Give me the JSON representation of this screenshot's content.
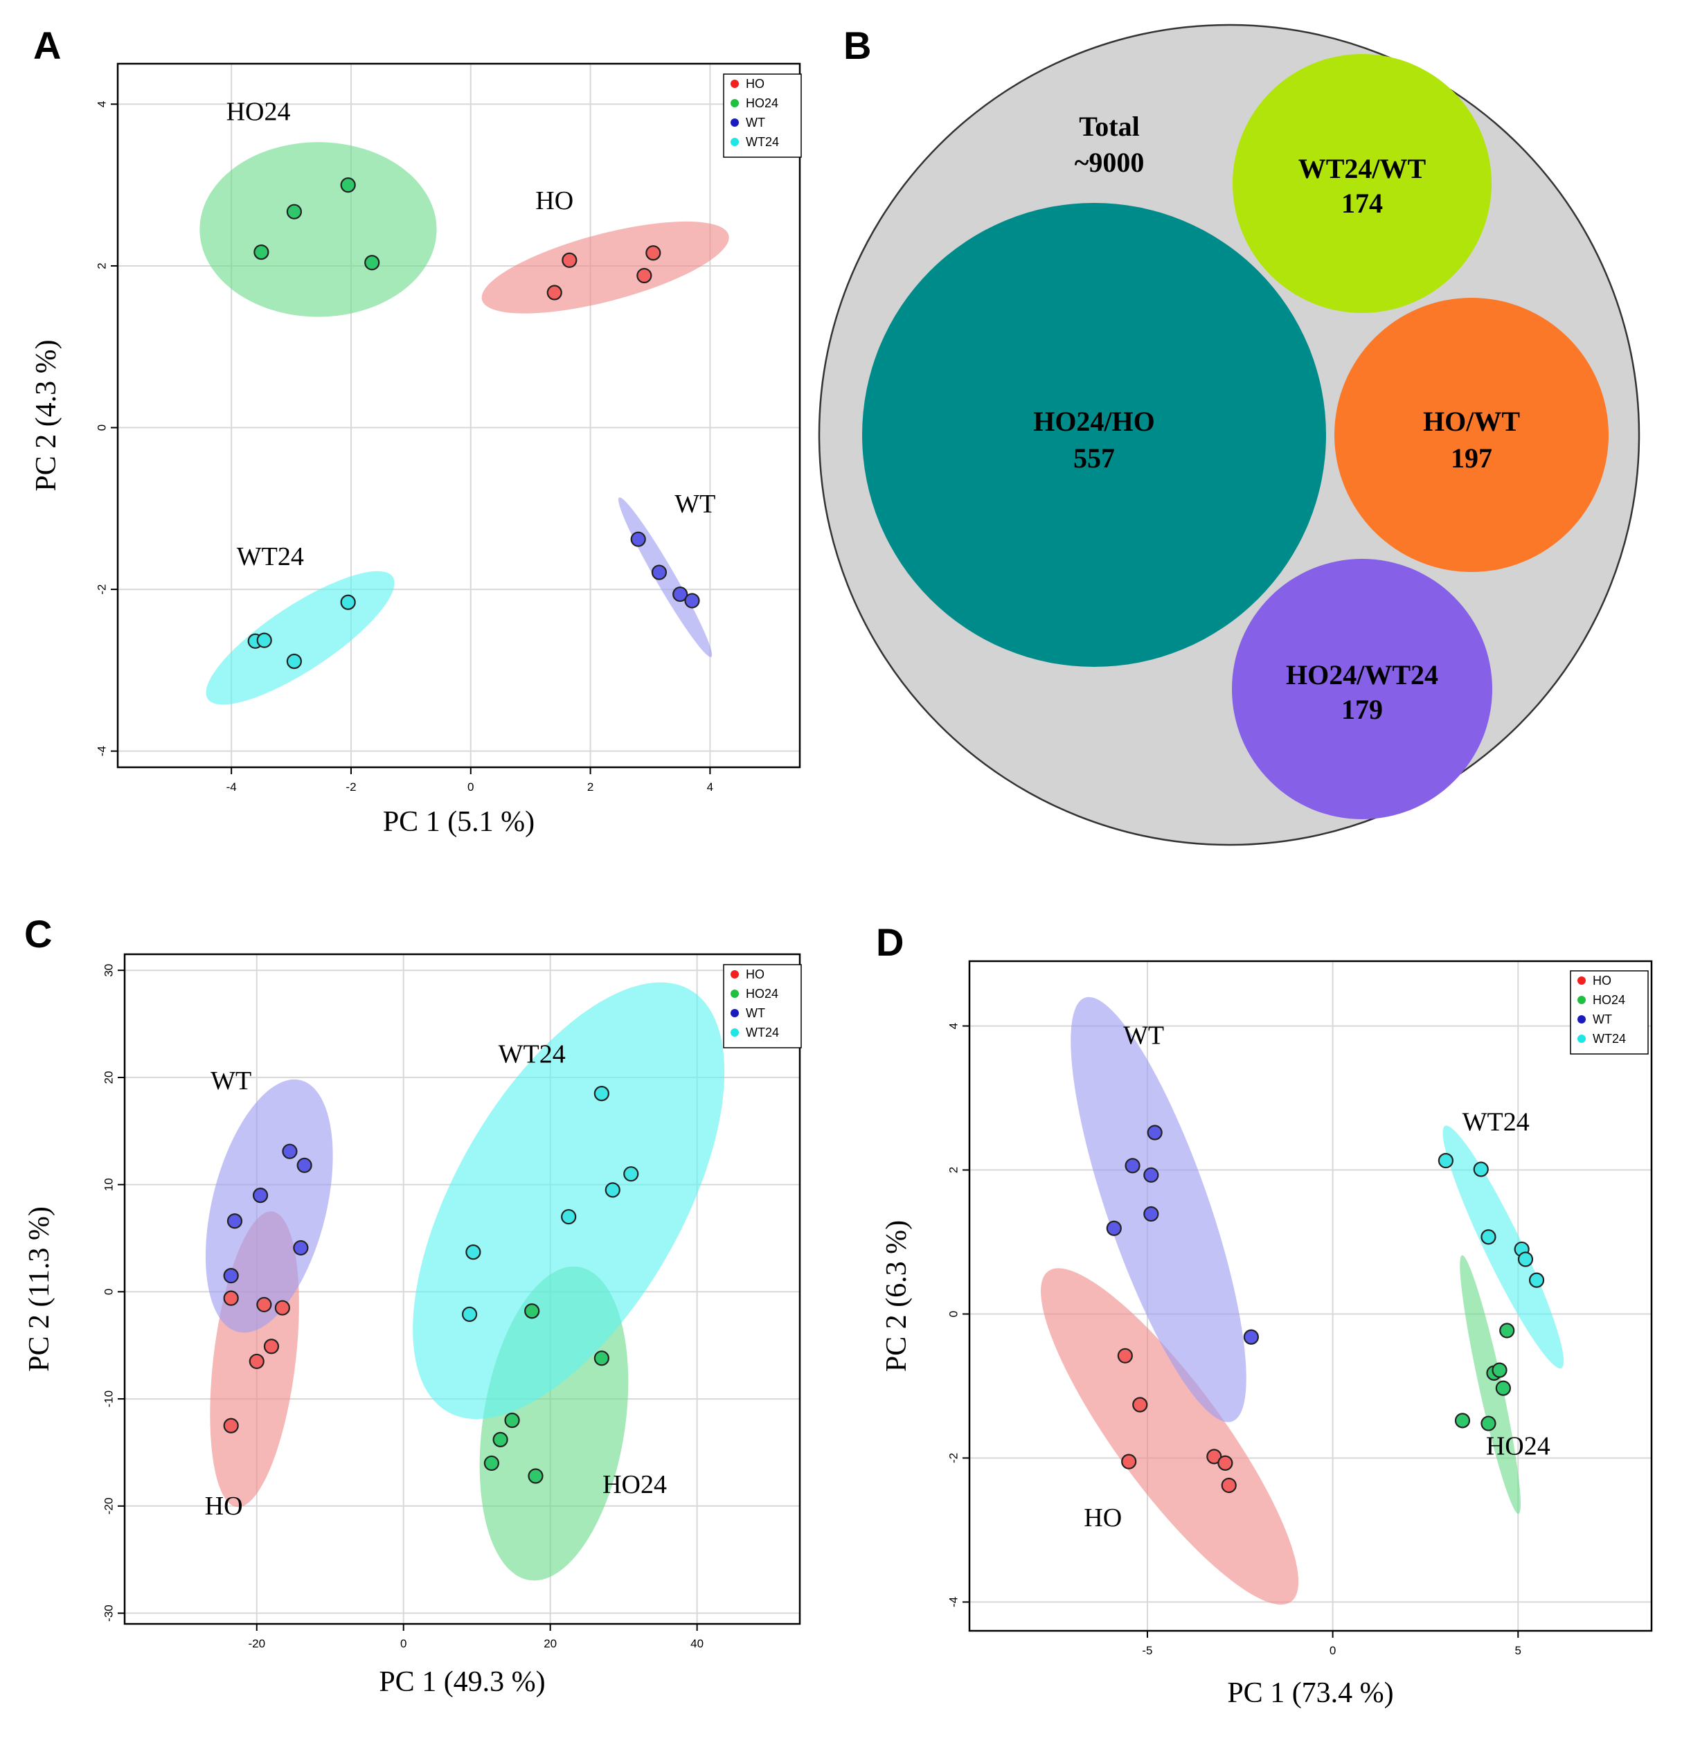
{
  "figure": {
    "panel_letters": [
      "A",
      "B",
      "C",
      "D"
    ]
  },
  "legend_groups": [
    {
      "name": "HO",
      "color": "#f2201f"
    },
    {
      "name": "HO24",
      "color": "#1fbf3f"
    },
    {
      "name": "WT",
      "color": "#1a1abf"
    },
    {
      "name": "WT24",
      "color": "#1fe5e5"
    }
  ],
  "ellipse_colors": {
    "HO": "#f08a8a",
    "HO24": "#6cdc8a",
    "WT": "#9c9cf0",
    "WT24": "#60f2f2"
  },
  "point_colors": {
    "HO": "#f26060",
    "HO24": "#2ec86a",
    "WT": "#5a5ae6",
    "WT24": "#40e6e6"
  },
  "chart_data": [
    {
      "panel": "A",
      "type": "scatter",
      "title": "",
      "xlabel": "PC 1 (5.1 %)",
      "ylabel": "PC 2 (4.3 %)",
      "xlim": [
        -5.9,
        5.5
      ],
      "ylim": [
        -4.2,
        4.5
      ],
      "xticks": [
        -4,
        -2,
        0,
        2,
        4
      ],
      "yticks": [
        -4,
        -2,
        0,
        2,
        4
      ],
      "legend": "top-right",
      "series": [
        {
          "name": "HO",
          "label": "HO",
          "label_at": [
            1.4,
            2.7
          ],
          "points": [
            [
              1.4,
              1.67
            ],
            [
              1.65,
              2.07
            ],
            [
              2.9,
              1.88
            ],
            [
              3.05,
              2.16
            ]
          ],
          "ellipse": {
            "cx": 2.25,
            "cy": 1.98,
            "rx": 2.1,
            "ry": 0.42,
            "angle": 11
          }
        },
        {
          "name": "HO24",
          "label": "HO24",
          "label_at": [
            -3.55,
            3.8
          ],
          "points": [
            [
              -3.5,
              2.17
            ],
            [
              -2.95,
              2.67
            ],
            [
              -2.05,
              3.0
            ],
            [
              -1.65,
              2.04
            ]
          ],
          "ellipse": {
            "cx": -2.55,
            "cy": 2.45,
            "rx": 1.98,
            "ry": 1.08,
            "angle": 0
          }
        },
        {
          "name": "WT",
          "label": "WT",
          "label_at": [
            3.75,
            -1.05
          ],
          "points": [
            [
              2.8,
              -1.38
            ],
            [
              3.15,
              -1.79
            ],
            [
              3.5,
              -2.06
            ],
            [
              3.7,
              -2.14
            ]
          ],
          "ellipse": {
            "cx": 3.25,
            "cy": -1.85,
            "rx": 1.25,
            "ry": 0.14,
            "angle": -52
          }
        },
        {
          "name": "WT24",
          "label": "WT24",
          "label_at": [
            -3.35,
            -1.7
          ],
          "points": [
            [
              -3.6,
              -2.64
            ],
            [
              -3.45,
              -2.63
            ],
            [
              -2.95,
              -2.89
            ],
            [
              -2.05,
              -2.16
            ]
          ],
          "ellipse": {
            "cx": -2.85,
            "cy": -2.6,
            "rx": 1.72,
            "ry": 0.42,
            "angle": 26
          }
        }
      ]
    },
    {
      "panel": "B",
      "type": "bubble",
      "total_label": "Total",
      "total_value": "~9000",
      "bubbles": [
        {
          "label": "HO24/HO",
          "value": "557",
          "color": "#008b8b"
        },
        {
          "label": "WT24/WT",
          "value": "174",
          "color": "#b0e40a"
        },
        {
          "label": "HO/WT",
          "value": "197",
          "color": "#fb7828"
        },
        {
          "label": "HO24/WT24",
          "value": "179",
          "color": "#8660e6"
        }
      ],
      "background_color": "#d3d3d3"
    },
    {
      "panel": "C",
      "type": "scatter",
      "title": "",
      "xlabel": "PC 1 (49.3 %)",
      "ylabel": "PC 2 (11.3 %)",
      "xlim": [
        -38,
        54
      ],
      "ylim": [
        -31,
        31.5
      ],
      "xticks": [
        -20,
        0,
        20,
        40
      ],
      "yticks": [
        -30,
        -20,
        -10,
        0,
        10,
        20,
        30
      ],
      "legend": "top-right",
      "series": [
        {
          "name": "HO",
          "label": "HO",
          "label_at": [
            -24.5,
            -20.8
          ],
          "points": [
            [
              -23.5,
              -0.6
            ],
            [
              -19,
              -1.2
            ],
            [
              -16.5,
              -1.5
            ],
            [
              -18,
              -5.1
            ],
            [
              -20,
              -6.5
            ],
            [
              -23.5,
              -12.5
            ]
          ],
          "ellipse": {
            "cx": -20.3,
            "cy": -6.3,
            "rx": 14,
            "ry": 5.5,
            "angle": 80
          }
        },
        {
          "name": "HO24",
          "label": "HO24",
          "label_at": [
            31.5,
            -18.8
          ],
          "points": [
            [
              17.5,
              -1.8
            ],
            [
              27,
              -6.2
            ],
            [
              14.8,
              -12.0
            ],
            [
              13.2,
              -13.8
            ],
            [
              18,
              -17.2
            ],
            [
              12,
              -16.0
            ]
          ],
          "ellipse": {
            "cx": 20.5,
            "cy": -12.3,
            "rx": 15,
            "ry": 9.4,
            "angle": 77
          }
        },
        {
          "name": "WT",
          "label": "WT",
          "label_at": [
            -23.5,
            18.9
          ],
          "points": [
            [
              -15.5,
              13.1
            ],
            [
              -13.5,
              11.8
            ],
            [
              -19.5,
              9.0
            ],
            [
              -23.0,
              6.6
            ],
            [
              -14,
              4.1
            ],
            [
              -23.5,
              1.5
            ]
          ],
          "ellipse": {
            "cx": -18.3,
            "cy": 8.0,
            "rx": 12.5,
            "ry": 7.3,
            "angle": 70
          }
        },
        {
          "name": "WT24",
          "label": "WT24",
          "label_at": [
            17.5,
            21.4
          ],
          "points": [
            [
              27,
              18.5
            ],
            [
              31,
              11.0
            ],
            [
              28.5,
              9.5
            ],
            [
              22.5,
              7.0
            ],
            [
              9.5,
              3.7
            ],
            [
              9,
              -2.1
            ]
          ],
          "ellipse": {
            "cx": 22.5,
            "cy": 8.5,
            "rx": 25.7,
            "ry": 12.7,
            "angle": 50
          }
        }
      ]
    },
    {
      "panel": "D",
      "type": "scatter",
      "title": "",
      "xlabel": "PC 1 (73.4 %)",
      "ylabel": "PC 2 (6.3 %)",
      "xlim": [
        -9.8,
        8.6
      ],
      "ylim": [
        -4.4,
        4.9
      ],
      "xticks": [
        -5,
        0,
        5
      ],
      "yticks": [
        -4,
        -2,
        0,
        2,
        4
      ],
      "legend": "top-right",
      "series": [
        {
          "name": "HO",
          "label": "HO",
          "label_at": [
            -6.2,
            -2.95
          ],
          "points": [
            [
              -5.6,
              -0.58
            ],
            [
              -5.2,
              -1.26
            ],
            [
              -5.5,
              -2.05
            ],
            [
              -3.2,
              -1.98
            ],
            [
              -2.9,
              -2.07
            ],
            [
              -2.8,
              -2.38
            ]
          ],
          "ellipse": {
            "cx": -4.4,
            "cy": -1.7,
            "rx": 4.0,
            "ry": 0.85,
            "angle": -35
          }
        },
        {
          "name": "HO24",
          "label": "HO24",
          "label_at": [
            5.0,
            -1.95
          ],
          "points": [
            [
              4.7,
              -0.23
            ],
            [
              4.35,
              -0.82
            ],
            [
              4.5,
              -0.78
            ],
            [
              4.6,
              -1.03
            ],
            [
              3.5,
              -1.48
            ],
            [
              4.2,
              -1.52
            ]
          ],
          "ellipse": {
            "cx": 4.25,
            "cy": -0.98,
            "rx": 1.95,
            "ry": 0.26,
            "angle": -67
          }
        },
        {
          "name": "WT",
          "label": "WT",
          "label_at": [
            -5.1,
            3.75
          ],
          "points": [
            [
              -4.8,
              2.52
            ],
            [
              -5.4,
              2.06
            ],
            [
              -4.9,
              1.93
            ],
            [
              -4.9,
              1.39
            ],
            [
              -5.9,
              1.19
            ],
            [
              -2.2,
              -0.32
            ]
          ],
          "ellipse": {
            "cx": -4.7,
            "cy": 1.45,
            "rx": 3.55,
            "ry": 1.0,
            "angle": -56
          }
        },
        {
          "name": "WT24",
          "label": "WT24",
          "label_at": [
            4.4,
            2.55
          ],
          "points": [
            [
              3.05,
              2.13
            ],
            [
              4.0,
              2.01
            ],
            [
              4.2,
              1.07
            ],
            [
              5.1,
              0.9
            ],
            [
              5.2,
              0.76
            ],
            [
              5.5,
              0.47
            ]
          ],
          "ellipse": {
            "cx": 4.6,
            "cy": 0.93,
            "rx": 2.3,
            "ry": 0.33,
            "angle": -47
          }
        }
      ]
    }
  ]
}
